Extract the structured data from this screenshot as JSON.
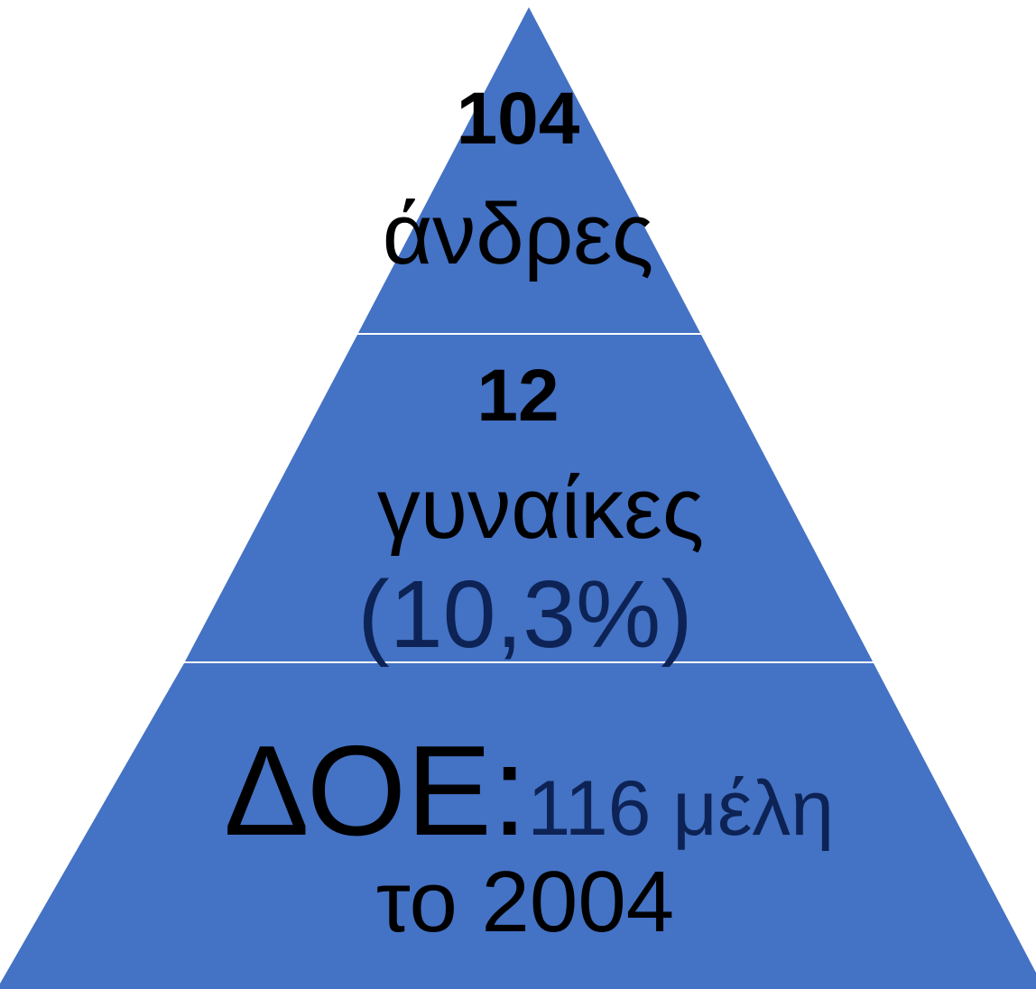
{
  "colors": {
    "fill": "#4472C4",
    "divider": "#FFFFFF",
    "text": "#000000",
    "dark_text": "#0D2355"
  },
  "tiers": [
    {
      "name": "top",
      "number": "104",
      "label": "άνδρες"
    },
    {
      "name": "middle",
      "number": "12",
      "label": "γυναίκες",
      "percent": "(10,3%)"
    },
    {
      "name": "bottom",
      "prefix": "ΔΟΕ:",
      "label": "116 μέλη",
      "year_line": "το 2004"
    }
  ]
}
